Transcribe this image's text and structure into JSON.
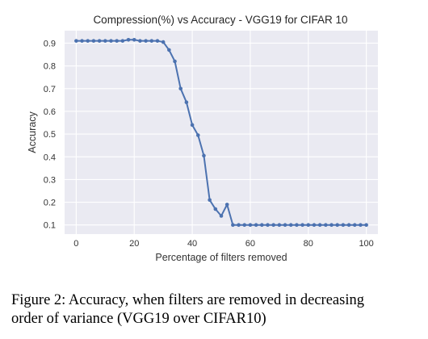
{
  "chart_data": {
    "type": "line",
    "title": "Compression(%) vs Accuracy - VGG19 for CIFAR 10",
    "xlabel": "Percentage of filters removed",
    "ylabel": "Accuracy",
    "xlim": [
      -4,
      104
    ],
    "ylim": [
      0.06,
      0.955
    ],
    "x_ticks": [
      0,
      20,
      40,
      60,
      80,
      100
    ],
    "y_ticks": [
      0.1,
      0.2,
      0.3,
      0.4,
      0.5,
      0.6,
      0.7,
      0.8,
      0.9
    ],
    "x_tick_labels": [
      "0",
      "20",
      "40",
      "60",
      "80",
      "100"
    ],
    "y_tick_labels": [
      "0.1",
      "0.2",
      "0.3",
      "0.4",
      "0.5",
      "0.6",
      "0.7",
      "0.8",
      "0.9"
    ],
    "grid": true,
    "series": [
      {
        "color": "#4c72b0",
        "x": [
          0,
          2,
          4,
          6,
          8,
          10,
          12,
          14,
          16,
          18,
          20,
          22,
          24,
          26,
          28,
          30,
          32,
          34,
          36,
          38,
          40,
          42,
          44,
          46,
          48,
          50,
          52,
          54,
          56,
          58,
          60,
          62,
          64,
          66,
          68,
          70,
          72,
          74,
          76,
          78,
          80,
          82,
          84,
          86,
          88,
          90,
          92,
          94,
          96,
          98,
          100
        ],
        "y": [
          0.91,
          0.91,
          0.91,
          0.91,
          0.91,
          0.91,
          0.91,
          0.91,
          0.91,
          0.915,
          0.915,
          0.91,
          0.91,
          0.91,
          0.91,
          0.905,
          0.87,
          0.82,
          0.7,
          0.64,
          0.54,
          0.495,
          0.405,
          0.21,
          0.17,
          0.14,
          0.19,
          0.1,
          0.1,
          0.1,
          0.1,
          0.1,
          0.1,
          0.1,
          0.1,
          0.1,
          0.1,
          0.1,
          0.1,
          0.1,
          0.1,
          0.1,
          0.1,
          0.1,
          0.1,
          0.1,
          0.1,
          0.1,
          0.1,
          0.1,
          0.1
        ]
      }
    ]
  },
  "caption": {
    "line1": "Figure 2: Accuracy, when filters are removed in decreasing",
    "line2": "order of variance (VGG19 over CIFAR10)"
  },
  "colors": {
    "plot_background": "#eaeaf2",
    "grid": "#ffffff",
    "line": "#4c72b0"
  }
}
